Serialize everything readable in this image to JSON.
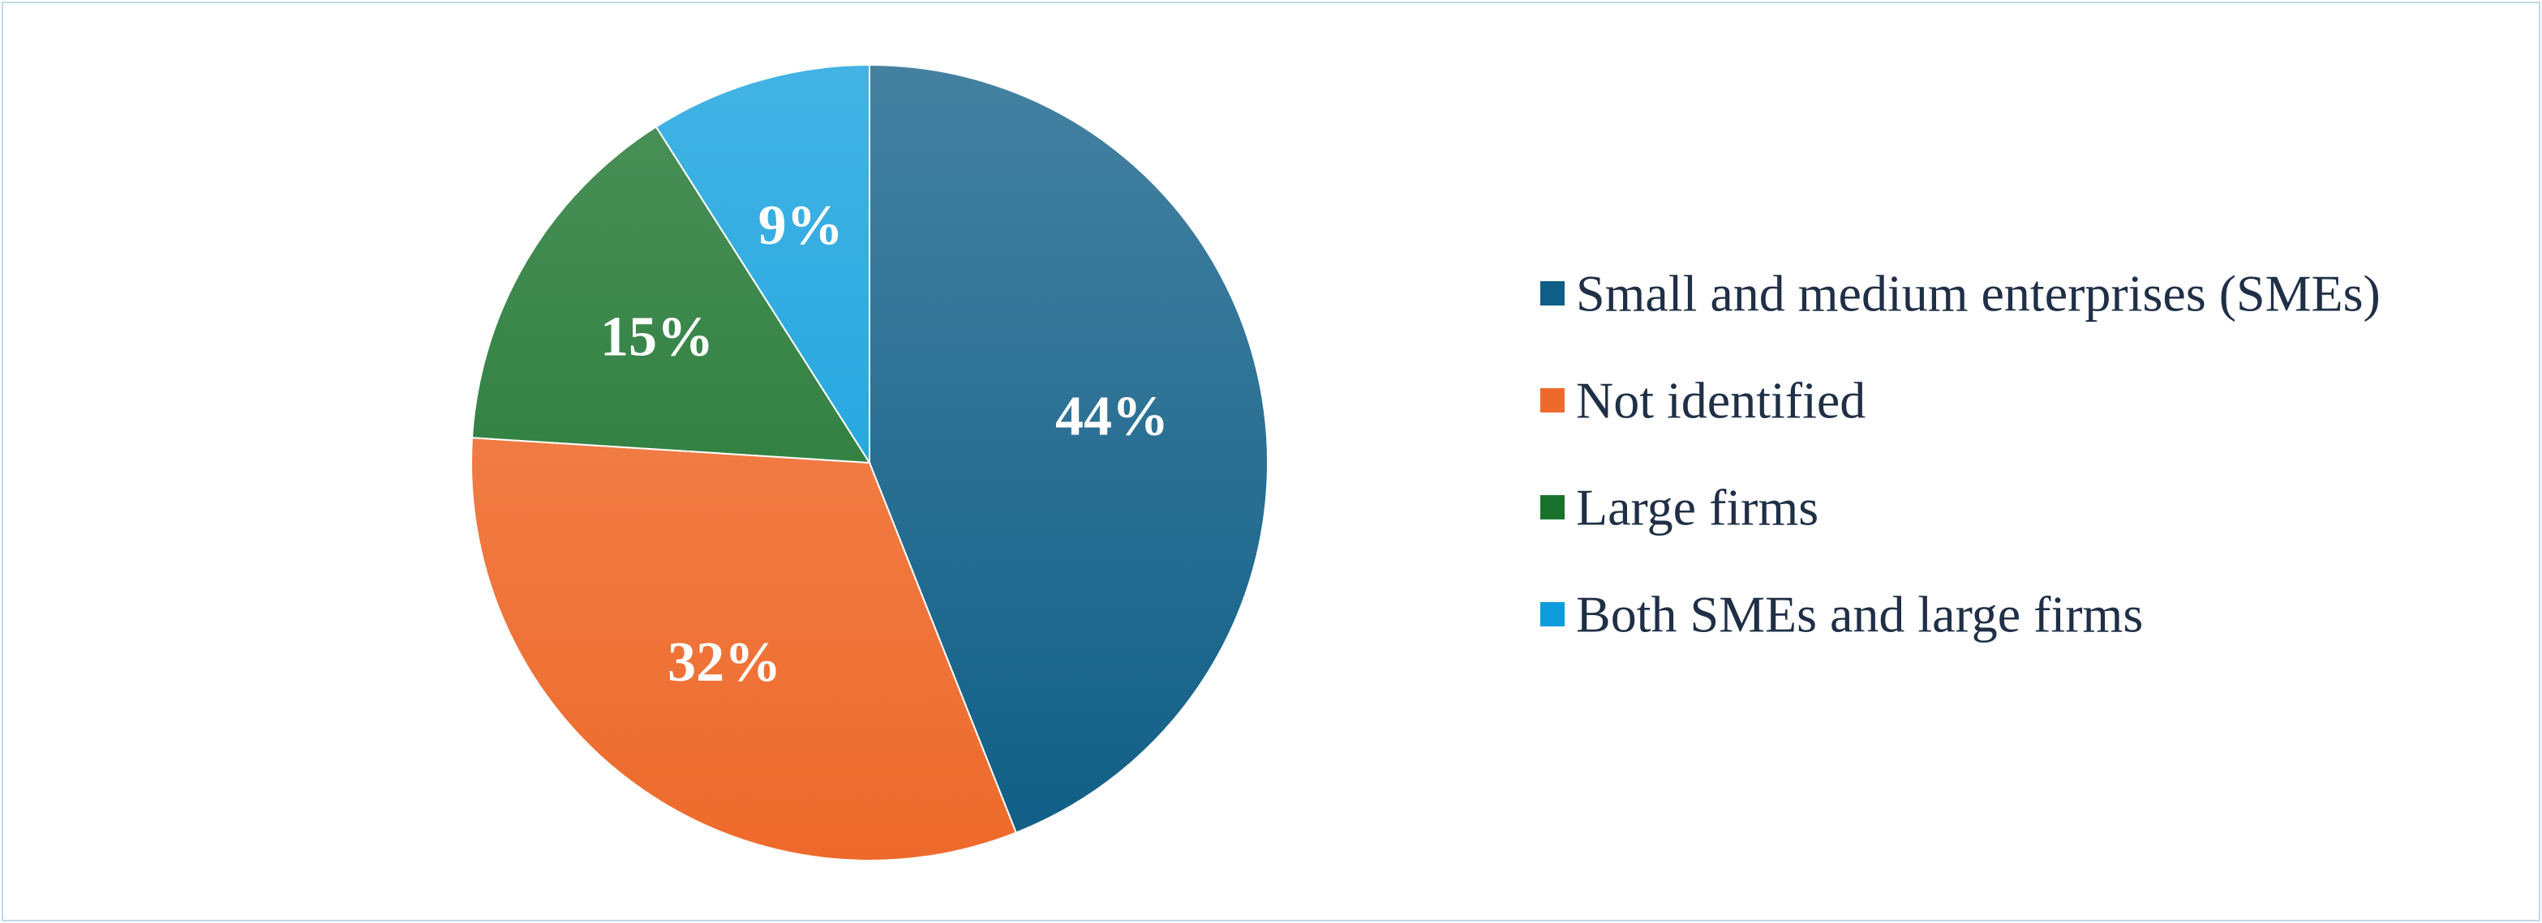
{
  "chart_data": {
    "type": "pie",
    "categories": [
      "Small and medium enterprises (SMEs)",
      "Not identified",
      "Large firms",
      "Both SMEs and large firms"
    ],
    "values": [
      44,
      32,
      15,
      9
    ],
    "labels": [
      "44%",
      "32%",
      "15%",
      "9%"
    ],
    "colors": [
      "#0f5e86",
      "#ee6a2b",
      "#19722b",
      "#0d9ddd"
    ],
    "start_angle": "12 o'clock",
    "direction": "clockwise",
    "legend_position": "right",
    "title": ""
  }
}
